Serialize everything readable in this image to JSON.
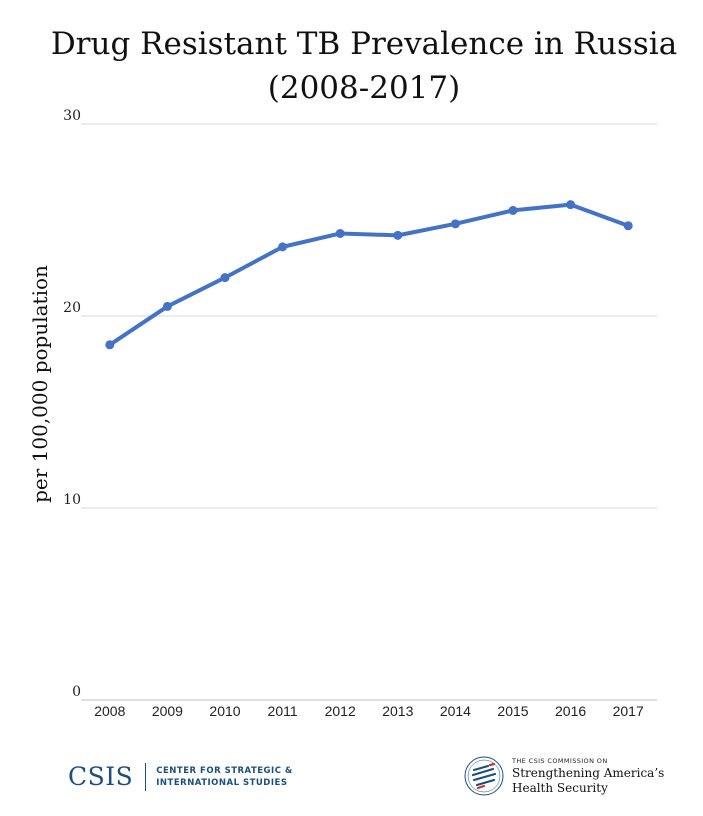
{
  "chart_data": {
    "type": "line",
    "title": "Drug Resistant TB Prevalence in Russia",
    "subtitle": "(2008-2017)",
    "xlabel": "",
    "ylabel": "per 100,000 population",
    "categories": [
      "2008",
      "2009",
      "2010",
      "2011",
      "2012",
      "2013",
      "2014",
      "2015",
      "2016",
      "2017"
    ],
    "series": [
      {
        "values": [
          18.5,
          20.5,
          22.0,
          23.6,
          24.3,
          24.2,
          24.8,
          25.5,
          25.8,
          24.7
        ],
        "color": "#4472c4"
      }
    ],
    "ylim": [
      0,
      30
    ],
    "yticks": [
      "0",
      "10",
      "20",
      "30"
    ],
    "grid": true,
    "legend": "none"
  },
  "footer": {
    "csis_logo": "CSIS",
    "csis_name_line1": "CENTER FOR STRATEGIC &",
    "csis_name_line2": "INTERNATIONAL STUDIES",
    "commission_line1": "THE CSIS COMMISSION ON",
    "commission_line2": "Strengthening America’s",
    "commission_line3": "Health Security",
    "seal_icon": "commission-seal-icon"
  }
}
